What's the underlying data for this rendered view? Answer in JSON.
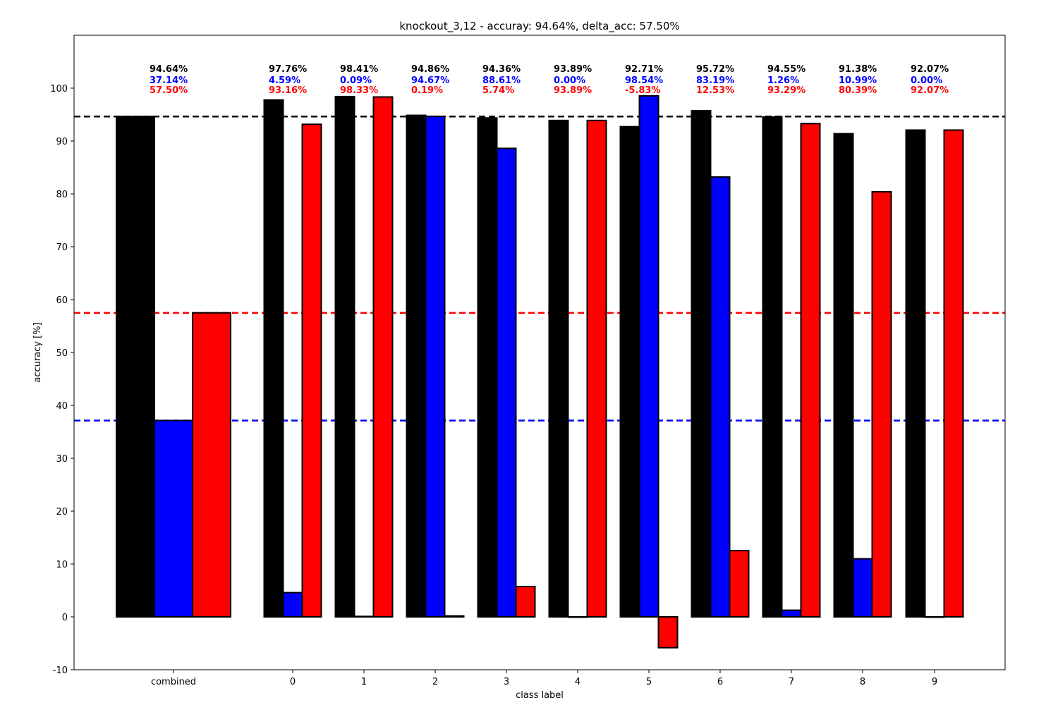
{
  "chart_data": {
    "type": "bar",
    "title": "knockout_3,12 - accuray: 94.64%, delta_acc: 57.50%",
    "xlabel": "class label",
    "ylabel": "accuracy [%]",
    "ylim": [
      -10,
      110
    ],
    "yticks": [
      -10,
      0,
      10,
      20,
      30,
      40,
      50,
      60,
      70,
      80,
      90,
      100
    ],
    "categories": [
      "combined",
      "0",
      "1",
      "2",
      "3",
      "4",
      "5",
      "6",
      "7",
      "8",
      "9"
    ],
    "colors": [
      "#000000",
      "#0000ff",
      "#ff0000"
    ],
    "series": [
      {
        "values": [
          94.64,
          97.76,
          98.41,
          94.86,
          94.36,
          93.89,
          92.71,
          95.72,
          94.55,
          91.38,
          92.07
        ]
      },
      {
        "values": [
          37.14,
          4.59,
          0.09,
          94.67,
          88.61,
          0.0,
          98.54,
          83.19,
          1.26,
          10.99,
          0.0
        ]
      },
      {
        "values": [
          57.5,
          93.16,
          98.33,
          0.19,
          5.74,
          93.89,
          -5.83,
          12.53,
          93.29,
          80.39,
          92.07
        ]
      }
    ],
    "value_labels": [
      [
        "94.64%",
        "97.76%",
        "98.41%",
        "94.86%",
        "94.36%",
        "93.89%",
        "92.71%",
        "95.72%",
        "94.55%",
        "91.38%",
        "92.07%"
      ],
      [
        "37.14%",
        "4.59%",
        "0.09%",
        "94.67%",
        "88.61%",
        "0.00%",
        "98.54%",
        "83.19%",
        "1.26%",
        "10.99%",
        "0.00%"
      ],
      [
        "57.50%",
        "93.16%",
        "98.33%",
        "0.19%",
        "5.74%",
        "93.89%",
        "-5.83%",
        "12.53%",
        "93.29%",
        "80.39%",
        "92.07%"
      ]
    ],
    "reference_lines": [
      {
        "y": 94.64,
        "color": "#000000",
        "style": "dashed"
      },
      {
        "y": 37.14,
        "color": "#0000ff",
        "style": "dashed"
      },
      {
        "y": 57.5,
        "color": "#ff0000",
        "style": "dashed"
      }
    ],
    "grid": false,
    "legend": "none"
  }
}
